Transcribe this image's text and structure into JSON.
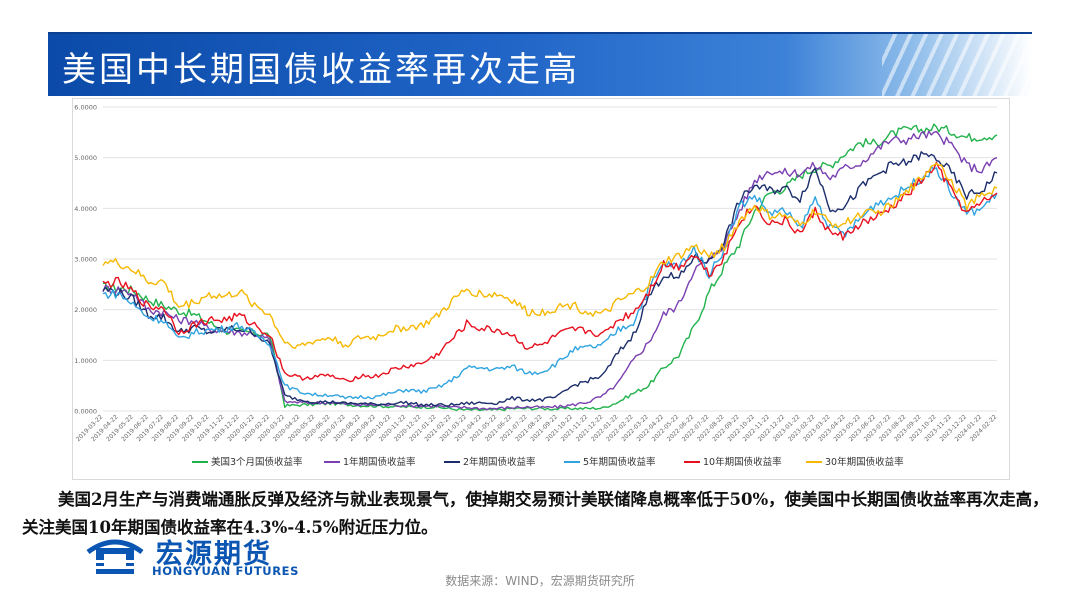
{
  "header": {
    "title": "美国中长期国债收益率再次走高"
  },
  "body_text": "美国2月生产与消费端通胀反弹及经济与就业表现景气，使掉期交易预计美联储降息概率低于50%，使美国中长期国债收益率再次走高，关注美国10年期国债收益率在4.3%-4.5%附近压力位。",
  "logo": {
    "name_cn": "宏源期货",
    "name_en": "HONGYUAN FUTURES",
    "color": "#0b56b3"
  },
  "source": "数据来源：WIND，宏源期货研究所",
  "chart_data": {
    "type": "line",
    "title": "",
    "xlabel": "",
    "ylabel": "",
    "ylim": [
      0,
      6
    ],
    "yticks": [
      "0.0000",
      "1.0000",
      "2.0000",
      "3.0000",
      "4.0000",
      "5.0000",
      "6.0000"
    ],
    "grid": "horizontal",
    "legend": "bottom",
    "x_ticks": [
      "2019-03-22",
      "2019-04-22",
      "2019-05-22",
      "2019-06-22",
      "2019-07-22",
      "2019-08-22",
      "2019-09-22",
      "2019-10-22",
      "2019-11-22",
      "2019-12-22",
      "2020-01-22",
      "2020-02-22",
      "2020-03-22",
      "2020-04-22",
      "2020-05-22",
      "2020-06-22",
      "2020-07-22",
      "2020-08-22",
      "2020-09-22",
      "2020-10-22",
      "2020-11-22",
      "2020-12-22",
      "2021-01-22",
      "2021-02-22",
      "2021-03-22",
      "2021-04-22",
      "2021-05-22",
      "2021-06-22",
      "2021-07-22",
      "2021-08-22",
      "2021-09-22",
      "2021-10-22",
      "2021-11-22",
      "2021-12-22",
      "2022-01-22",
      "2022-02-22",
      "2022-03-22",
      "2022-04-22",
      "2022-05-22",
      "2022-06-22",
      "2022-07-22",
      "2022-08-22",
      "2022-09-22",
      "2022-10-22",
      "2022-11-22",
      "2022-12-22",
      "2023-01-22",
      "2023-02-22",
      "2023-03-22",
      "2023-04-22",
      "2023-05-22",
      "2023-06-22",
      "2023-07-22",
      "2023-08-22",
      "2023-09-22",
      "2023-10-22",
      "2023-11-22",
      "2023-12-22",
      "2024-01-22",
      "2024-02-22"
    ],
    "series": [
      {
        "name": "美国3个月国债收益率",
        "color": "#22b24c",
        "values": [
          2.45,
          2.43,
          2.38,
          2.2,
          2.08,
          1.98,
          1.9,
          1.75,
          1.58,
          1.57,
          1.55,
          1.5,
          0.1,
          0.12,
          0.13,
          0.15,
          0.13,
          0.11,
          0.1,
          0.09,
          0.08,
          0.08,
          0.08,
          0.04,
          0.02,
          0.02,
          0.02,
          0.05,
          0.05,
          0.05,
          0.04,
          0.05,
          0.05,
          0.06,
          0.18,
          0.35,
          0.5,
          0.85,
          1.1,
          1.65,
          2.35,
          2.85,
          3.3,
          3.95,
          4.3,
          4.4,
          4.65,
          4.8,
          4.85,
          5.1,
          5.3,
          5.28,
          5.45,
          5.55,
          5.55,
          5.6,
          5.52,
          5.4,
          5.42,
          5.45
        ]
      },
      {
        "name": "1年期国债收益率",
        "color": "#7a3fb0",
        "values": [
          2.42,
          2.4,
          2.32,
          2.0,
          1.95,
          1.8,
          1.78,
          1.62,
          1.58,
          1.55,
          1.52,
          1.4,
          0.18,
          0.17,
          0.16,
          0.17,
          0.14,
          0.12,
          0.12,
          0.12,
          0.11,
          0.1,
          0.1,
          0.07,
          0.07,
          0.05,
          0.05,
          0.07,
          0.08,
          0.07,
          0.08,
          0.12,
          0.18,
          0.3,
          0.55,
          1.0,
          1.35,
          1.9,
          2.1,
          2.8,
          2.95,
          3.3,
          3.95,
          4.55,
          4.75,
          4.7,
          4.7,
          4.85,
          4.6,
          4.8,
          4.9,
          5.15,
          5.35,
          5.35,
          5.45,
          5.45,
          5.25,
          4.85,
          4.75,
          5.0
        ]
      },
      {
        "name": "2年期国债收益率",
        "color": "#1b2d6b",
        "values": [
          2.4,
          2.35,
          2.2,
          1.9,
          1.85,
          1.55,
          1.65,
          1.55,
          1.62,
          1.62,
          1.55,
          1.3,
          0.3,
          0.22,
          0.18,
          0.18,
          0.15,
          0.15,
          0.13,
          0.15,
          0.17,
          0.12,
          0.12,
          0.12,
          0.15,
          0.16,
          0.16,
          0.25,
          0.22,
          0.22,
          0.28,
          0.5,
          0.6,
          0.7,
          1.15,
          1.5,
          2.25,
          2.7,
          2.6,
          3.05,
          2.95,
          3.35,
          4.15,
          4.45,
          4.35,
          4.4,
          4.2,
          4.8,
          4.0,
          4.05,
          4.4,
          4.65,
          4.85,
          4.9,
          5.05,
          5.0,
          4.7,
          4.25,
          4.35,
          4.7
        ]
      },
      {
        "name": "5年期国债收益率",
        "color": "#2fa3e0",
        "values": [
          2.3,
          2.32,
          2.1,
          1.85,
          1.8,
          1.4,
          1.55,
          1.6,
          1.62,
          1.7,
          1.52,
          1.35,
          0.5,
          0.38,
          0.32,
          0.32,
          0.25,
          0.28,
          0.28,
          0.35,
          0.42,
          0.38,
          0.45,
          0.6,
          0.85,
          0.85,
          0.82,
          0.88,
          0.75,
          0.78,
          0.95,
          1.2,
          1.25,
          1.3,
          1.6,
          1.75,
          2.4,
          2.9,
          2.85,
          3.2,
          2.7,
          3.2,
          4.05,
          4.25,
          3.9,
          3.95,
          3.6,
          4.2,
          3.6,
          3.5,
          3.8,
          4.1,
          4.2,
          4.4,
          4.6,
          4.8,
          4.3,
          3.9,
          4.0,
          4.3
        ]
      },
      {
        "name": "10年期国债收益率",
        "color": "#e8101e",
        "values": [
          2.5,
          2.55,
          2.35,
          2.05,
          2.05,
          1.55,
          1.7,
          1.8,
          1.8,
          1.88,
          1.7,
          1.5,
          0.75,
          0.65,
          0.68,
          0.7,
          0.58,
          0.7,
          0.68,
          0.8,
          0.88,
          0.93,
          1.1,
          1.4,
          1.72,
          1.62,
          1.6,
          1.5,
          1.25,
          1.3,
          1.5,
          1.6,
          1.58,
          1.5,
          1.8,
          1.95,
          2.35,
          2.9,
          2.85,
          3.1,
          2.7,
          3.05,
          3.75,
          4.05,
          3.7,
          3.75,
          3.5,
          3.95,
          3.5,
          3.45,
          3.7,
          3.8,
          4.0,
          4.25,
          4.55,
          4.85,
          4.35,
          3.9,
          4.1,
          4.3
        ]
      },
      {
        "name": "30年期国债收益率",
        "color": "#f6b800",
        "values": [
          2.95,
          2.92,
          2.78,
          2.55,
          2.55,
          2.05,
          2.15,
          2.3,
          2.25,
          2.35,
          2.1,
          1.9,
          1.35,
          1.28,
          1.38,
          1.45,
          1.3,
          1.45,
          1.45,
          1.6,
          1.65,
          1.68,
          1.85,
          2.15,
          2.4,
          2.3,
          2.3,
          2.2,
          1.95,
          1.95,
          2.05,
          2.1,
          1.95,
          1.9,
          2.15,
          2.3,
          2.5,
          2.95,
          3.05,
          3.25,
          3.05,
          3.25,
          3.75,
          4.05,
          3.85,
          3.85,
          3.65,
          3.95,
          3.7,
          3.7,
          3.9,
          3.9,
          4.05,
          4.3,
          4.6,
          4.95,
          4.55,
          4.05,
          4.25,
          4.4
        ]
      }
    ]
  }
}
